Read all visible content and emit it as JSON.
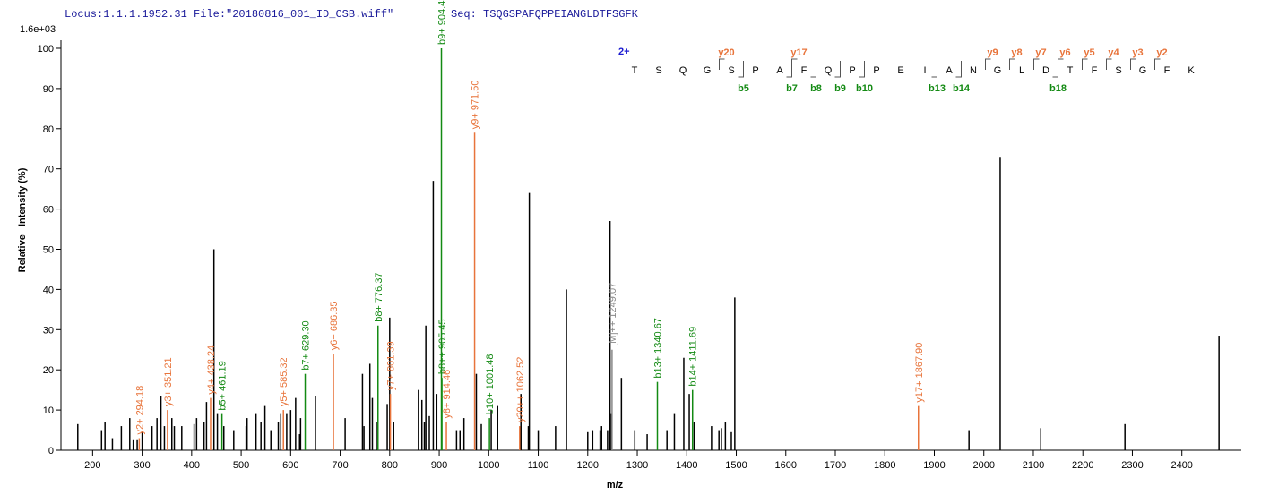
{
  "header": {
    "locus": "Locus:1.1.1.1952.31 File:\"20180816_001_ID_CSB.wiff\"",
    "seq": "Seq: TSQGSPAFQPPEIANGLDTFSGFK"
  },
  "chart_data": {
    "type": "stem",
    "scale_label": "1.6e+03",
    "xlabel": "m/z",
    "ylabel": "Relative   Intensity (%)",
    "xlim": [
      136,
      2520
    ],
    "ylim": [
      0,
      102
    ],
    "xticks": [
      200,
      300,
      400,
      500,
      600,
      700,
      800,
      900,
      1000,
      1100,
      1200,
      1300,
      1400,
      1500,
      1600,
      1700,
      1800,
      1900,
      2000,
      2100,
      2200,
      2300,
      2400
    ],
    "yticks": [
      0,
      10,
      20,
      30,
      40,
      50,
      60,
      70,
      80,
      90,
      100
    ],
    "color": "#000000",
    "x": [
      170,
      218,
      225,
      240,
      258,
      275,
      282,
      290,
      300,
      320,
      330,
      338,
      345,
      360,
      365,
      380,
      405,
      410,
      425,
      430,
      445,
      452,
      465,
      485,
      510,
      512,
      530,
      540,
      548,
      560,
      575,
      580,
      592,
      600,
      610,
      618,
      620,
      650,
      710,
      745,
      748,
      760,
      765,
      775,
      795,
      800,
      808,
      858,
      865,
      870,
      873,
      880,
      888,
      895,
      935,
      942,
      950,
      975,
      985,
      1005,
      1018,
      1065,
      1080,
      1082,
      1100,
      1135,
      1157,
      1200,
      1210,
      1225,
      1228,
      1240,
      1245,
      1248,
      1268,
      1295,
      1320,
      1360,
      1375,
      1394,
      1405,
      1415,
      1450,
      1465,
      1470,
      1478,
      1490,
      1497,
      1970,
      2033,
      2115,
      2285,
      2475
    ],
    "values": [
      6.5,
      5,
      7,
      3,
      6,
      8,
      2.5,
      2.5,
      4.5,
      6,
      8,
      13.5,
      6,
      8,
      6,
      6,
      6.5,
      8,
      7,
      12,
      50,
      9,
      6,
      5,
      6,
      8,
      9,
      7,
      11,
      5,
      7,
      9,
      9,
      10,
      13,
      4,
      8,
      13.5,
      8,
      19,
      6,
      21.5,
      13,
      7,
      11.5,
      33,
      7,
      15,
      12.5,
      7,
      31,
      8.5,
      67,
      14,
      5,
      5,
      8,
      19,
      6.5,
      10,
      11,
      14,
      6,
      64,
      5,
      6,
      40,
      4.5,
      5,
      5,
      6,
      5,
      57,
      9,
      18,
      5,
      4,
      5,
      9,
      23,
      14,
      7,
      6,
      5,
      5.5,
      7,
      4.5,
      38,
      5,
      73,
      5.5,
      6.5,
      28.5
    ],
    "annotations": [
      {
        "x": 294.18,
        "value": 3,
        "label": "y2+ 294.18",
        "color": "#e8743b"
      },
      {
        "x": 351.21,
        "value": 10,
        "label": "y3+ 351.21",
        "color": "#e8743b"
      },
      {
        "x": 438.24,
        "value": 13,
        "label": "y4+ 438.24",
        "color": "#e8743b"
      },
      {
        "x": 461.19,
        "value": 9,
        "label": "b5+ 461.19",
        "color": "#138a13"
      },
      {
        "x": 585.32,
        "value": 10,
        "label": "y5+ 585.32",
        "color": "#e8743b"
      },
      {
        "x": 629.3,
        "value": 19,
        "label": "b7+ 629.30",
        "color": "#138a13"
      },
      {
        "x": 686.35,
        "value": 24,
        "label": "y6+ 686.35",
        "color": "#e8743b"
      },
      {
        "x": 776.37,
        "value": 31,
        "label": "b8+ 776.37",
        "color": "#138a13"
      },
      {
        "x": 801.39,
        "value": 14,
        "label": "y7+ 801.39",
        "color": "#e8743b"
      },
      {
        "x": 904.43,
        "value": 100,
        "label": "b9+ 904.43",
        "color": "#138a13"
      },
      {
        "x": 905.45,
        "value": 18,
        "label": "b8++ 905.45",
        "color": "#138a13"
      },
      {
        "x": 914.46,
        "value": 7,
        "label": "y8+ 914.46",
        "color": "#e8743b"
      },
      {
        "x": 971.5,
        "value": 79,
        "label": "y9+ 971.50",
        "color": "#e8743b"
      },
      {
        "x": 1001.48,
        "value": 8,
        "label": "b10+ 1001.48",
        "color": "#138a13"
      },
      {
        "x": 1062.52,
        "value": 6,
        "label": "y20++ 1062.52",
        "color": "#e8743b"
      },
      {
        "x": 1249.07,
        "value": 25,
        "label": "[M]++ 1249.07",
        "color": "#888888"
      },
      {
        "x": 1340.67,
        "value": 17,
        "label": "b13+ 1340.67",
        "color": "#138a13"
      },
      {
        "x": 1411.69,
        "value": 15,
        "label": "b14+ 1411.69",
        "color": "#138a13"
      },
      {
        "x": 1867.9,
        "value": 11,
        "label": "y17+ 1867.90",
        "color": "#e8743b"
      }
    ]
  },
  "fragment_map": {
    "charge": "2+",
    "residues": [
      "T",
      "S",
      "Q",
      "G",
      "S",
      "P",
      "A",
      "F",
      "Q",
      "P",
      "P",
      "E",
      "I",
      "A",
      "N",
      "G",
      "L",
      "D",
      "T",
      "F",
      "S",
      "G",
      "F",
      "K"
    ],
    "y_ions": [
      {
        "value": 20,
        "label": "y20"
      },
      {
        "value": 17,
        "label": "y17"
      },
      {
        "value": 9,
        "label": "y9"
      },
      {
        "value": 8,
        "label": "y8"
      },
      {
        "value": 7,
        "label": "y7"
      },
      {
        "value": 6,
        "label": "y6"
      },
      {
        "value": 5,
        "label": "y5"
      },
      {
        "value": 4,
        "label": "y4"
      },
      {
        "value": 3,
        "label": "y3"
      },
      {
        "value": 2,
        "label": "y2"
      }
    ],
    "b_ions": [
      {
        "value": 5,
        "label": "b5"
      },
      {
        "value": 7,
        "label": "b7"
      },
      {
        "value": 8,
        "label": "b8"
      },
      {
        "value": 9,
        "label": "b9"
      },
      {
        "value": 10,
        "label": "b10"
      },
      {
        "value": 13,
        "label": "b13"
      },
      {
        "value": 14,
        "label": "b14"
      },
      {
        "value": 18,
        "label": "b18"
      }
    ]
  }
}
